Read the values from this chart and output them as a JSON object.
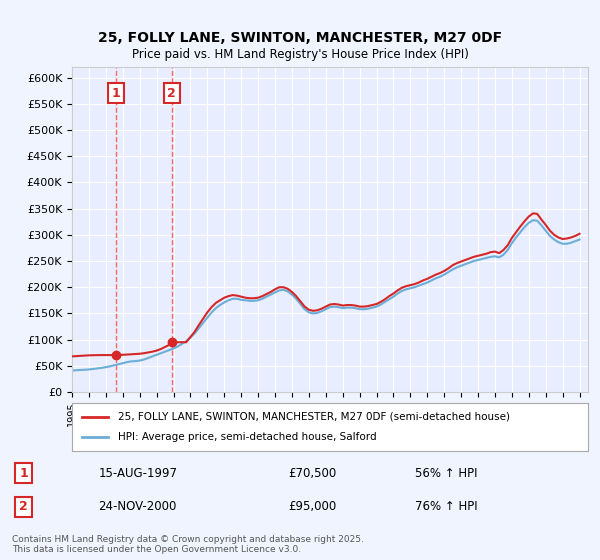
{
  "title": "25, FOLLY LANE, SWINTON, MANCHESTER, M27 0DF",
  "subtitle": "Price paid vs. HM Land Registry's House Price Index (HPI)",
  "background_color": "#f0f4ff",
  "plot_bg_color": "#e8eeff",
  "grid_color": "#ffffff",
  "xlabel": "",
  "ylabel": "",
  "ylim": [
    0,
    620000
  ],
  "yticks": [
    0,
    50000,
    100000,
    150000,
    200000,
    250000,
    300000,
    350000,
    400000,
    450000,
    500000,
    550000,
    600000
  ],
  "ytick_labels": [
    "£0",
    "£50K",
    "£100K",
    "£150K",
    "£200K",
    "£250K",
    "£300K",
    "£350K",
    "£400K",
    "£450K",
    "£500K",
    "£550K",
    "£600K"
  ],
  "hpi_color": "#6baed6",
  "price_color": "#d62728",
  "marker_color": "#d62728",
  "annotation_box_color": "#d62728",
  "vline_color": "#ff6666",
  "legend_label_price": "25, FOLLY LANE, SWINTON, MANCHESTER, M27 0DF (semi-detached house)",
  "legend_label_hpi": "HPI: Average price, semi-detached house, Salford",
  "annotation1_label": "1",
  "annotation1_date": "15-AUG-1997",
  "annotation1_price": "£70,500",
  "annotation1_hpi": "56% ↑ HPI",
  "annotation1_year": 1997.62,
  "annotation1_value": 70500,
  "annotation2_label": "2",
  "annotation2_date": "24-NOV-2000",
  "annotation2_price": "£95,000",
  "annotation2_hpi": "76% ↑ HPI",
  "annotation2_year": 2000.9,
  "annotation2_value": 95000,
  "copyright_text": "Contains HM Land Registry data © Crown copyright and database right 2025.\nThis data is licensed under the Open Government Licence v3.0.",
  "hpi_data": {
    "years": [
      1995.0,
      1995.25,
      1995.5,
      1995.75,
      1996.0,
      1996.25,
      1996.5,
      1996.75,
      1997.0,
      1997.25,
      1997.5,
      1997.75,
      1998.0,
      1998.25,
      1998.5,
      1998.75,
      1999.0,
      1999.25,
      1999.5,
      1999.75,
      2000.0,
      2000.25,
      2000.5,
      2000.75,
      2001.0,
      2001.25,
      2001.5,
      2001.75,
      2002.0,
      2002.25,
      2002.5,
      2002.75,
      2003.0,
      2003.25,
      2003.5,
      2003.75,
      2004.0,
      2004.25,
      2004.5,
      2004.75,
      2005.0,
      2005.25,
      2005.5,
      2005.75,
      2006.0,
      2006.25,
      2006.5,
      2006.75,
      2007.0,
      2007.25,
      2007.5,
      2007.75,
      2008.0,
      2008.25,
      2008.5,
      2008.75,
      2009.0,
      2009.25,
      2009.5,
      2009.75,
      2010.0,
      2010.25,
      2010.5,
      2010.75,
      2011.0,
      2011.25,
      2011.5,
      2011.75,
      2012.0,
      2012.25,
      2012.5,
      2012.75,
      2013.0,
      2013.25,
      2013.5,
      2013.75,
      2014.0,
      2014.25,
      2014.5,
      2014.75,
      2015.0,
      2015.25,
      2015.5,
      2015.75,
      2016.0,
      2016.25,
      2016.5,
      2016.75,
      2017.0,
      2017.25,
      2017.5,
      2017.75,
      2018.0,
      2018.25,
      2018.5,
      2018.75,
      2019.0,
      2019.25,
      2019.5,
      2019.75,
      2020.0,
      2020.25,
      2020.5,
      2020.75,
      2021.0,
      2021.25,
      2021.5,
      2021.75,
      2022.0,
      2022.25,
      2022.5,
      2022.75,
      2023.0,
      2023.25,
      2023.5,
      2023.75,
      2024.0,
      2024.25,
      2024.5,
      2024.75,
      2025.0
    ],
    "values": [
      41000,
      41500,
      42000,
      42500,
      43000,
      44000,
      45000,
      46000,
      47500,
      49000,
      51000,
      53000,
      55000,
      57000,
      58500,
      59000,
      60000,
      62000,
      65000,
      68000,
      71000,
      74000,
      77000,
      80000,
      83000,
      87000,
      92000,
      97000,
      104000,
      112000,
      122000,
      132000,
      142000,
      152000,
      160000,
      166000,
      171000,
      175000,
      178000,
      178000,
      176000,
      175000,
      174000,
      174000,
      175000,
      178000,
      182000,
      186000,
      190000,
      194000,
      195000,
      192000,
      186000,
      178000,
      168000,
      158000,
      152000,
      150000,
      151000,
      154000,
      158000,
      162000,
      163000,
      162000,
      160000,
      161000,
      161000,
      160000,
      158000,
      158000,
      159000,
      161000,
      163000,
      167000,
      172000,
      177000,
      182000,
      188000,
      193000,
      196000,
      198000,
      200000,
      203000,
      206000,
      209000,
      213000,
      217000,
      220000,
      224000,
      229000,
      234000,
      238000,
      241000,
      244000,
      247000,
      250000,
      252000,
      254000,
      256000,
      258000,
      259000,
      257000,
      262000,
      271000,
      284000,
      295000,
      305000,
      315000,
      323000,
      328000,
      327000,
      318000,
      308000,
      298000,
      291000,
      286000,
      283000,
      283000,
      285000,
      288000,
      291000
    ]
  },
  "price_data": {
    "years": [
      1995.0,
      1995.25,
      1995.5,
      1995.75,
      1996.0,
      1996.25,
      1996.5,
      1996.75,
      1997.0,
      1997.25,
      1997.5,
      1997.75,
      1998.0,
      1998.25,
      1998.5,
      1998.75,
      1999.0,
      1999.25,
      1999.5,
      1999.75,
      2000.0,
      2000.25,
      2000.5,
      2000.75,
      2001.0,
      2001.25,
      2001.5,
      2001.75,
      2002.0,
      2002.25,
      2002.5,
      2002.75,
      2003.0,
      2003.25,
      2003.5,
      2003.75,
      2004.0,
      2004.25,
      2004.5,
      2004.75,
      2005.0,
      2005.25,
      2005.5,
      2005.75,
      2006.0,
      2006.25,
      2006.5,
      2006.75,
      2007.0,
      2007.25,
      2007.5,
      2007.75,
      2008.0,
      2008.25,
      2008.5,
      2008.75,
      2009.0,
      2009.25,
      2009.5,
      2009.75,
      2010.0,
      2010.25,
      2010.5,
      2010.75,
      2011.0,
      2011.25,
      2011.5,
      2011.75,
      2012.0,
      2012.25,
      2012.5,
      2012.75,
      2013.0,
      2013.25,
      2013.5,
      2013.75,
      2014.0,
      2014.25,
      2014.5,
      2014.75,
      2015.0,
      2015.25,
      2015.5,
      2015.75,
      2016.0,
      2016.25,
      2016.5,
      2016.75,
      2017.0,
      2017.25,
      2017.5,
      2017.75,
      2018.0,
      2018.25,
      2018.5,
      2018.75,
      2019.0,
      2019.25,
      2019.5,
      2019.75,
      2020.0,
      2020.25,
      2020.5,
      2020.75,
      2021.0,
      2021.25,
      2021.5,
      2021.75,
      2022.0,
      2022.25,
      2022.5,
      2022.75,
      2023.0,
      2023.25,
      2023.5,
      2023.75,
      2024.0,
      2024.25,
      2024.5,
      2024.75,
      2025.0
    ],
    "values": [
      68000,
      68500,
      69000,
      69500,
      70000,
      70200,
      70400,
      70450,
      70500,
      70500,
      70500,
      70500,
      71000,
      71500,
      72000,
      72500,
      73000,
      74000,
      75500,
      77000,
      79000,
      82000,
      86000,
      90000,
      95000,
      95000,
      95000,
      95000,
      105000,
      115000,
      128000,
      140000,
      152000,
      162000,
      170000,
      175000,
      180000,
      183000,
      185000,
      184000,
      182000,
      180000,
      179000,
      179000,
      180000,
      183000,
      187000,
      191000,
      196000,
      200000,
      200000,
      197000,
      191000,
      183000,
      173000,
      163000,
      157000,
      155000,
      156000,
      159000,
      163000,
      167000,
      168000,
      167000,
      165000,
      166000,
      166000,
      165000,
      163000,
      163000,
      164000,
      166000,
      168000,
      172000,
      177000,
      183000,
      188000,
      194000,
      199000,
      202000,
      204000,
      206000,
      209000,
      213000,
      216000,
      220000,
      224000,
      227000,
      231000,
      236000,
      242000,
      246000,
      249000,
      252000,
      255000,
      258000,
      260000,
      262000,
      264000,
      267000,
      268000,
      265000,
      271000,
      280000,
      294000,
      305000,
      316000,
      326000,
      335000,
      341000,
      340000,
      329000,
      319000,
      308000,
      300000,
      295000,
      292000,
      293000,
      295000,
      298000,
      302000
    ]
  }
}
